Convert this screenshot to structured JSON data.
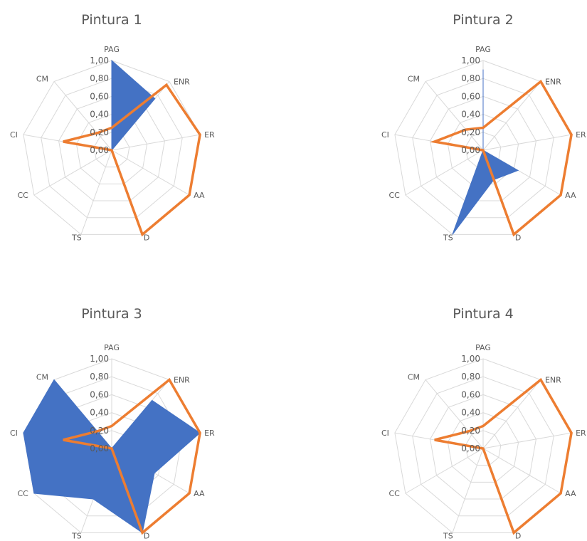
{
  "chart_data": [
    {
      "type": "radar",
      "title": "Pintura 1",
      "categories": [
        "PAG",
        "ENR",
        "ER",
        "AA",
        "D",
        "TS",
        "CC",
        "CI",
        "CM"
      ],
      "ticks": [
        "1,00",
        "0,80",
        "0,60",
        "0,40",
        "0,20",
        "0,00"
      ],
      "rlim": [
        0,
        1
      ],
      "grid": true,
      "series": [
        {
          "color": "#4472C4",
          "fill": true,
          "values": [
            1.0,
            0.75,
            0.0,
            0.0,
            0.0,
            0.0,
            0.0,
            0.0,
            0.0
          ]
        },
        {
          "color": "#ED7D31",
          "fill": false,
          "values": [
            0.25,
            0.95,
            1.0,
            1.0,
            1.0,
            0.0,
            0.0,
            0.55,
            0.25
          ]
        }
      ]
    },
    {
      "type": "radar",
      "title": "Pintura 2",
      "categories": [
        "PAG",
        "ENR",
        "ER",
        "AA",
        "D",
        "TS",
        "CC",
        "CI",
        "CM"
      ],
      "ticks": [
        "1,00",
        "0,80",
        "0,60",
        "0,40",
        "0,20",
        "0,00"
      ],
      "rlim": [
        0,
        1
      ],
      "grid": true,
      "series": [
        {
          "color": "#4472C4",
          "fill": true,
          "values": [
            0.9,
            0.0,
            0.0,
            0.45,
            0.35,
            1.0,
            0.0,
            0.0,
            0.0
          ]
        },
        {
          "color": "#ED7D31",
          "fill": false,
          "values": [
            0.25,
            1.0,
            1.0,
            1.0,
            1.0,
            0.0,
            0.0,
            0.55,
            0.3
          ]
        }
      ]
    },
    {
      "type": "radar",
      "title": "Pintura 3",
      "categories": [
        "PAG",
        "ENR",
        "ER",
        "AA",
        "D",
        "TS",
        "CC",
        "CI",
        "CM"
      ],
      "ticks": [
        "1,00",
        "0,80",
        "0,60",
        "0,40",
        "0,20",
        "0,00"
      ],
      "rlim": [
        0,
        1
      ],
      "grid": true,
      "series": [
        {
          "color": "#4472C4",
          "fill": true,
          "values": [
            0.0,
            0.7,
            1.0,
            0.55,
            1.0,
            0.6,
            1.0,
            1.0,
            1.0
          ]
        },
        {
          "color": "#ED7D31",
          "fill": false,
          "values": [
            0.25,
            1.0,
            1.0,
            1.0,
            1.0,
            0.0,
            0.0,
            0.55,
            0.25
          ]
        }
      ]
    },
    {
      "type": "radar",
      "title": "Pintura 4",
      "categories": [
        "PAG",
        "ENR",
        "ER",
        "AA",
        "D",
        "TS",
        "CC",
        "CI",
        "CM"
      ],
      "ticks": [
        "1,00",
        "0,80",
        "0,60",
        "0,40",
        "0,20",
        "0,00"
      ],
      "rlim": [
        0,
        1
      ],
      "grid": true,
      "series": [
        {
          "color": "#ED7D31",
          "fill": false,
          "values": [
            0.25,
            1.0,
            1.0,
            1.0,
            1.0,
            0.0,
            0.0,
            0.55,
            0.25
          ]
        }
      ]
    }
  ]
}
